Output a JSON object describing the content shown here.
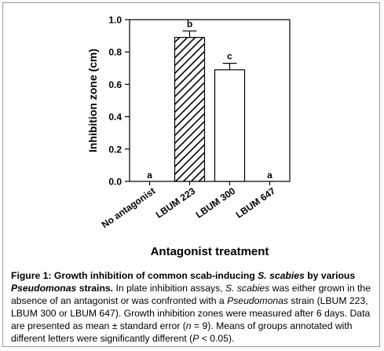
{
  "chart_data": {
    "type": "bar",
    "xlabel": "Antagonist treatment",
    "ylabel": "Inhibition zone (cm)",
    "ylim": [
      0,
      1.0
    ],
    "yticks": [
      "0.0",
      "0.2",
      "0.4",
      "0.6",
      "0.8",
      "1.0"
    ],
    "categories": [
      "No antagonist",
      "LBUM 223",
      "LBUM 300",
      "LBUM 647"
    ],
    "values": [
      0,
      0.89,
      0.69,
      0
    ],
    "errors": [
      0,
      0.04,
      0.04,
      0
    ],
    "letters": [
      "a",
      "b",
      "c",
      "a"
    ],
    "fills": [
      "none",
      "hatched",
      "white",
      "none"
    ],
    "grid": false,
    "legend": "none"
  },
  "caption": {
    "label": "Figure 1:",
    "title_part1": "Growth inhibition of common scab-inducing",
    "title_species": "S. scabies",
    "title_part2": "by various",
    "title_genus": "Pseudomonas",
    "title_part3": "strains.",
    "body_part1": "In plate inhibition assays,",
    "body_species": "S. scabies",
    "body_part2": "was either grown in the absence of an antagonist or was confronted with a",
    "body_genus": "Pseudomonas",
    "body_part3": "strain (LBUM 223, LBUM 300 or LBUM 647). Growth inhibition zones were measured after 6 days. Data are presented as mean ± standard error (",
    "body_n": "n",
    "body_part4": "= 9). Means of groups annotated with different letters were significantly different (",
    "body_p": "P",
    "body_part5": "< 0.05)."
  }
}
